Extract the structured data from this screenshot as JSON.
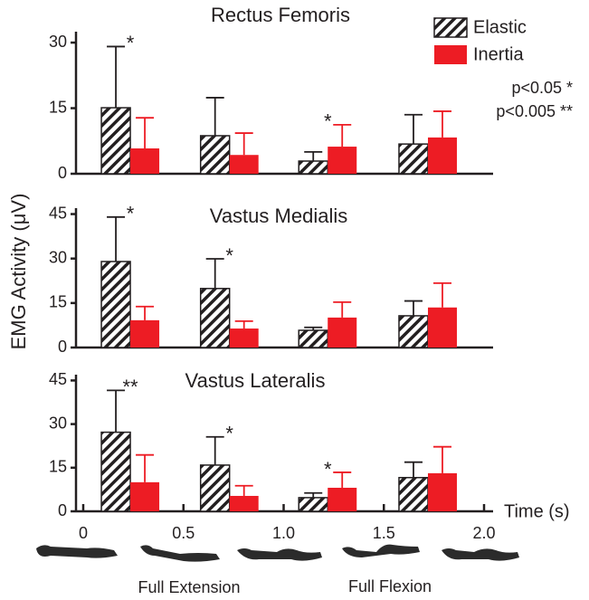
{
  "ylabel": "EMG Activity (μV)",
  "xlabel": "Time (s)",
  "xlim": [
    0,
    2.0
  ],
  "xticks": [
    0,
    0.5,
    {
      "value": 1,
      "label": "1.0"
    },
    1.5,
    {
      "value": 2,
      "label": "2.0"
    }
  ],
  "x": [
    0.235,
    0.73,
    1.22,
    1.72
  ],
  "legend": [
    {
      "name": "Elastic",
      "color": "#231f20",
      "hatch": true
    },
    {
      "name": "Inertia",
      "color": "#ed1c24",
      "hatch": false
    }
  ],
  "note": [
    "p<0.05 *",
    "p<0.005 **"
  ],
  "phase_labels": [
    "Full Extension",
    "Full Flexion"
  ],
  "chart_data": [
    {
      "type": "bar",
      "title": "Rectus Femoris",
      "ylim": [
        0,
        32.5
      ],
      "yticks": [
        0,
        15,
        30
      ],
      "series": [
        {
          "values": [
            15.1,
            8.7,
            2.9,
            6.8
          ],
          "errors": [
            14,
            8.7,
            2.1,
            6.7
          ]
        },
        {
          "values": [
            5.8,
            4.3,
            6.2,
            8.3
          ],
          "errors": [
            7,
            5,
            5,
            6
          ]
        }
      ],
      "significance": [
        "*",
        null,
        "*",
        null
      ]
    },
    {
      "type": "bar",
      "title": "Vastus Medialis",
      "ylim": [
        0,
        47
      ],
      "yticks": [
        0,
        15,
        30,
        45
      ],
      "series": [
        {
          "values": [
            29,
            19.9,
            5.8,
            10.7
          ],
          "errors": [
            15,
            10,
            1,
            5
          ]
        },
        {
          "values": [
            9.2,
            6.4,
            10.1,
            13.5
          ],
          "errors": [
            4.6,
            2.5,
            5.2,
            8.2
          ]
        }
      ],
      "significance": [
        "*",
        "*",
        null,
        null
      ]
    },
    {
      "type": "bar",
      "title": "Vastus Lateralis",
      "ylim": [
        0,
        47
      ],
      "yticks": [
        0,
        15,
        30,
        45
      ],
      "series": [
        {
          "values": [
            27.2,
            15.9,
            4.7,
            11.6
          ],
          "errors": [
            14.4,
            9.7,
            1.6,
            5.3
          ]
        },
        {
          "values": [
            10,
            5.3,
            8.1,
            13.1
          ],
          "errors": [
            9.4,
            3.5,
            5.3,
            9.1
          ]
        }
      ],
      "significance": [
        "**",
        "*",
        "*",
        null
      ]
    }
  ]
}
